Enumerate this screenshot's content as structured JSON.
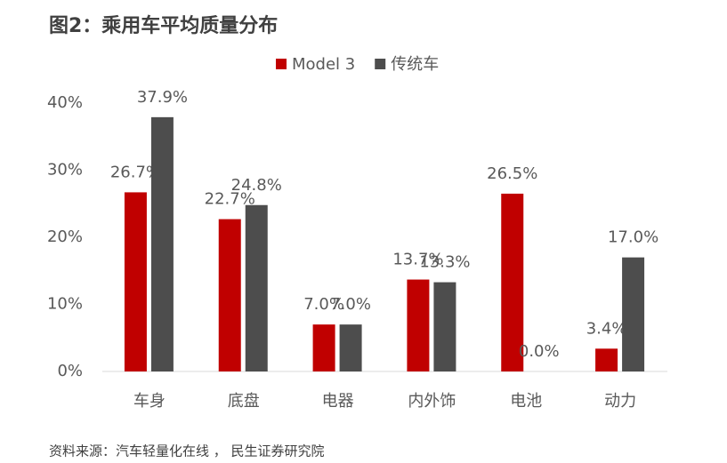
{
  "chart_data": {
    "type": "bar",
    "title": "图2：乘用车平均质量分布",
    "categories": [
      "车身",
      "底盘",
      "电器",
      "内外饰",
      "电池",
      "动力"
    ],
    "series": [
      {
        "name": "Model 3",
        "color": "#c00000",
        "values": [
          26.7,
          22.7,
          7.0,
          13.7,
          26.5,
          3.4
        ],
        "value_labels": [
          "26.7%",
          "22.7%",
          "7.0%",
          "13.7%",
          "26.5%",
          "3.4%"
        ]
      },
      {
        "name": "传统车",
        "color": "#4d4d4d",
        "values": [
          37.9,
          24.8,
          7.0,
          13.3,
          0.0,
          17.0
        ],
        "value_labels": [
          "37.9%",
          "24.8%",
          "7.0%",
          "13.3%",
          "0.0%",
          "17.0%"
        ]
      }
    ],
    "ylim": [
      0,
      40
    ],
    "yticks": [
      {
        "value": 0,
        "label": "0%"
      },
      {
        "value": 10,
        "label": "10%"
      },
      {
        "value": 20,
        "label": "20%"
      },
      {
        "value": 30,
        "label": "30%"
      },
      {
        "value": 40,
        "label": "40%"
      }
    ],
    "grid": false,
    "source": "资料来源：汽车轻量化在线 ， 民生证券研究院"
  }
}
